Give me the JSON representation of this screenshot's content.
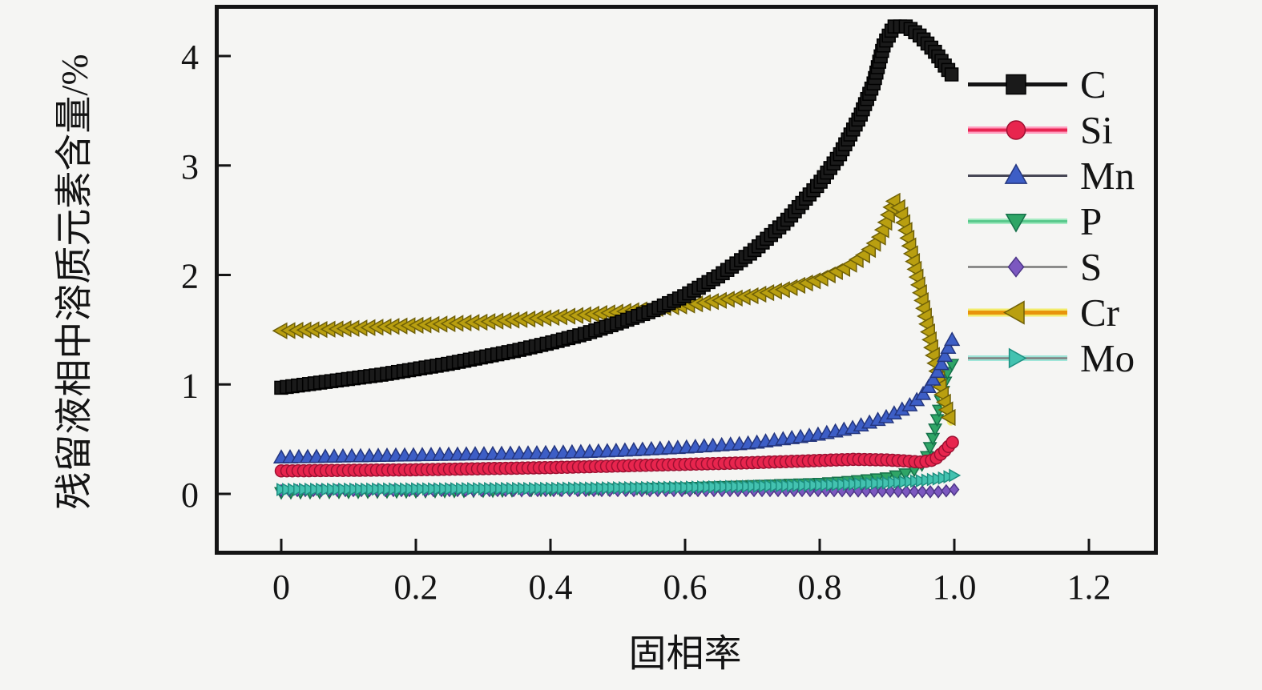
{
  "figure": {
    "background": "#f5f5f3",
    "border_color": "#141414",
    "title": ""
  },
  "axes": {
    "x": {
      "label": "固相率",
      "tick_values": [
        0,
        0.2,
        0.4,
        0.6,
        0.8,
        1.0,
        1.2
      ],
      "tick_labels": [
        "0",
        "0.2",
        "0.4",
        "0.6",
        "0.8",
        "1.0",
        "1.2"
      ],
      "lim": [
        -0.1,
        1.3
      ]
    },
    "y": {
      "label": "残留液相中溶质元素含量/%",
      "tick_values": [
        0,
        1,
        2,
        3,
        4
      ],
      "tick_labels": [
        "0",
        "1",
        "2",
        "3",
        "4"
      ],
      "lim": [
        -0.56,
        4.45
      ]
    }
  },
  "legend": {
    "position": "upper right",
    "entries": [
      {
        "label": "C"
      },
      {
        "label": "Si"
      },
      {
        "label": "Mn"
      },
      {
        "label": "P"
      },
      {
        "label": "S"
      },
      {
        "label": "Cr"
      },
      {
        "label": "Mo"
      }
    ]
  },
  "chart_data": {
    "type": "line",
    "title": "",
    "xlabel": "固相率",
    "ylabel": "残留液相中溶质元素含量/%",
    "xlim": [
      -0.1,
      1.3
    ],
    "ylim": [
      -0.56,
      4.45
    ],
    "grid": false,
    "legend_position": "upper right",
    "draw_order": [
      "P",
      "S",
      "Mo",
      "Cr",
      "C",
      "Si",
      "Mn"
    ],
    "series": [
      {
        "name": "C",
        "marker": "square",
        "marker_size": 16,
        "marker_spacing": 7,
        "marker_color": "#1a1a1a",
        "marker_edge": "#000000",
        "line_color": "#141414",
        "line_width": 5,
        "glow_color": "",
        "glow_width": 0,
        "x": [
          0,
          0.05,
          0.1,
          0.15,
          0.2,
          0.25,
          0.3,
          0.35,
          0.4,
          0.45,
          0.5,
          0.55,
          0.6,
          0.65,
          0.7,
          0.75,
          0.8,
          0.83,
          0.86,
          0.88,
          0.895,
          0.91,
          0.93,
          0.95,
          0.97,
          0.985,
          1.0
        ],
        "y": [
          0.97,
          1.01,
          1.05,
          1.09,
          1.14,
          1.19,
          1.25,
          1.31,
          1.38,
          1.46,
          1.56,
          1.67,
          1.81,
          1.99,
          2.21,
          2.49,
          2.84,
          3.1,
          3.45,
          3.75,
          4.1,
          4.27,
          4.27,
          4.18,
          4.05,
          3.92,
          3.8
        ]
      },
      {
        "name": "Si",
        "marker": "circle",
        "marker_size": 15,
        "marker_spacing": 7,
        "marker_color": "#E8254E",
        "marker_edge": "#9C1132",
        "line_color": "#E82552",
        "line_width": 4,
        "glow_color": "#FF9CBE",
        "glow_width": 9,
        "x": [
          0,
          0.1,
          0.2,
          0.3,
          0.4,
          0.5,
          0.6,
          0.7,
          0.8,
          0.85,
          0.9,
          0.93,
          0.95,
          0.97,
          0.985,
          1.0
        ],
        "y": [
          0.21,
          0.215,
          0.22,
          0.23,
          0.24,
          0.255,
          0.27,
          0.285,
          0.305,
          0.315,
          0.31,
          0.3,
          0.29,
          0.31,
          0.39,
          0.49
        ]
      },
      {
        "name": "Mn",
        "marker": "triangle-up",
        "marker_size": 16,
        "marker_spacing": 11,
        "marker_color": "#3D5EC6",
        "marker_edge": "#24367E",
        "line_color": "#474755",
        "line_width": 3,
        "glow_color": "",
        "glow_width": 0,
        "x": [
          0,
          0.1,
          0.2,
          0.3,
          0.4,
          0.5,
          0.6,
          0.7,
          0.8,
          0.85,
          0.9,
          0.93,
          0.95,
          0.965,
          0.98,
          0.99,
          0.998
        ],
        "y": [
          0.33,
          0.34,
          0.35,
          0.36,
          0.37,
          0.39,
          0.42,
          0.46,
          0.54,
          0.6,
          0.7,
          0.79,
          0.88,
          1.0,
          1.17,
          1.32,
          1.42
        ]
      },
      {
        "name": "P",
        "marker": "triangle-down",
        "marker_size": 14,
        "marker_spacing": 12,
        "marker_color": "#2FA566",
        "marker_edge": "#16714A",
        "line_color": "#59C98C",
        "line_width": 3,
        "glow_color": "#A5EAC2",
        "glow_width": 7,
        "x": [
          0,
          0.1,
          0.2,
          0.3,
          0.4,
          0.5,
          0.6,
          0.7,
          0.8,
          0.85,
          0.9,
          0.93,
          0.95,
          0.96,
          0.97,
          0.98,
          0.99,
          0.997
        ],
        "y": [
          0.015,
          0.02,
          0.025,
          0.03,
          0.04,
          0.05,
          0.06,
          0.08,
          0.1,
          0.12,
          0.15,
          0.19,
          0.25,
          0.35,
          0.55,
          0.85,
          1.12,
          1.19
        ]
      },
      {
        "name": "S",
        "marker": "diamond",
        "marker_size": 12,
        "marker_spacing": 10,
        "marker_color": "#7C58C0",
        "marker_edge": "#4E3788",
        "line_color": "#787878",
        "line_width": 2.5,
        "glow_color": "",
        "glow_width": 0,
        "x": [
          0,
          0.2,
          0.4,
          0.6,
          0.8,
          0.9,
          0.95,
          0.98,
          1.0
        ],
        "y": [
          0.03,
          0.03,
          0.03,
          0.03,
          0.03,
          0.025,
          0.02,
          0.02,
          0.04
        ]
      },
      {
        "name": "Cr",
        "marker": "triangle-left",
        "marker_size": 17,
        "marker_spacing": 10,
        "marker_color": "#B99F10",
        "marker_edge": "#6F6008",
        "line_color": "#E8940C",
        "line_width": 5,
        "glow_color": "#F2EC6A",
        "glow_width": 10,
        "x": [
          0,
          0.1,
          0.2,
          0.3,
          0.4,
          0.5,
          0.6,
          0.7,
          0.75,
          0.8,
          0.84,
          0.87,
          0.89,
          0.9,
          0.91,
          0.92,
          0.93,
          0.94,
          0.95,
          0.96,
          0.97,
          0.98,
          0.99,
          0.995
        ],
        "y": [
          1.49,
          1.51,
          1.54,
          1.57,
          1.61,
          1.66,
          1.72,
          1.81,
          1.87,
          1.96,
          2.07,
          2.2,
          2.35,
          2.5,
          2.68,
          2.6,
          2.38,
          2.12,
          1.85,
          1.55,
          1.25,
          0.97,
          0.75,
          0.66
        ]
      },
      {
        "name": "Mo",
        "marker": "triangle-right",
        "marker_size": 13,
        "marker_spacing": 7,
        "marker_color": "#43C2B0",
        "marker_edge": "#1E8F80",
        "line_color": "#808080",
        "line_width": 2.5,
        "glow_color": "#9FE5D8",
        "glow_width": 7,
        "x": [
          0,
          0.2,
          0.4,
          0.6,
          0.8,
          0.9,
          0.95,
          0.98,
          1.0
        ],
        "y": [
          0.04,
          0.045,
          0.05,
          0.06,
          0.08,
          0.1,
          0.12,
          0.14,
          0.17
        ]
      }
    ]
  }
}
